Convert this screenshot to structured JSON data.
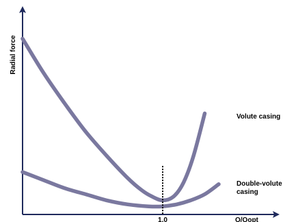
{
  "chart_data": {
    "type": "line",
    "xlabel": "Q/Qopt",
    "ylabel": "Radial force",
    "x_ticks": [
      "1.0"
    ],
    "reference_line": {
      "x": 1.0
    },
    "series": [
      {
        "name": "Volute casing",
        "color": "#7a789f",
        "x": [
          0.0,
          0.15,
          0.3,
          0.45,
          0.6,
          0.75,
          0.85,
          0.92,
          1.0,
          1.08,
          1.15,
          1.22,
          1.3
        ],
        "y": [
          0.87,
          0.7,
          0.55,
          0.41,
          0.29,
          0.18,
          0.12,
          0.09,
          0.07,
          0.09,
          0.16,
          0.29,
          0.5
        ]
      },
      {
        "name": "Double-volute casing",
        "color": "#7a789f",
        "x": [
          0.0,
          0.15,
          0.3,
          0.45,
          0.6,
          0.75,
          0.9,
          1.0,
          1.1,
          1.2,
          1.3,
          1.4
        ],
        "y": [
          0.21,
          0.17,
          0.13,
          0.1,
          0.07,
          0.05,
          0.04,
          0.04,
          0.05,
          0.07,
          0.1,
          0.15
        ]
      }
    ]
  }
}
